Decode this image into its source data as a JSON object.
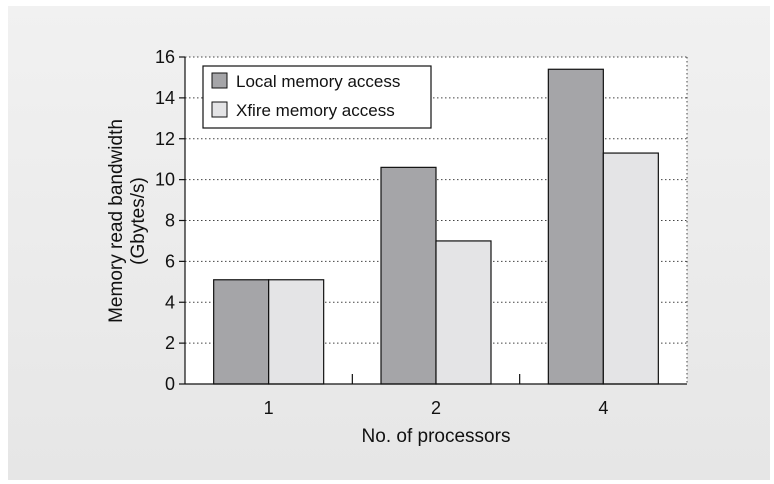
{
  "chart_data": {
    "type": "bar",
    "categories": [
      "1",
      "2",
      "4"
    ],
    "series": [
      {
        "name": "Local memory access",
        "values": [
          5.1,
          10.6,
          15.4
        ],
        "color": "#a5a5a8"
      },
      {
        "name": "Xfire memory access",
        "values": [
          5.1,
          7.0,
          11.3
        ],
        "color": "#e4e4e6"
      }
    ],
    "xlabel": "No. of processors",
    "ylabel_lines": [
      "Memory read bandwidth",
      "(Gbytes/s)"
    ],
    "ylim": [
      0,
      16
    ],
    "yticks": [
      "0",
      "2",
      "4",
      "6",
      "8",
      "10",
      "12",
      "14",
      "16"
    ],
    "grid": true,
    "legend_position": "top-left"
  }
}
